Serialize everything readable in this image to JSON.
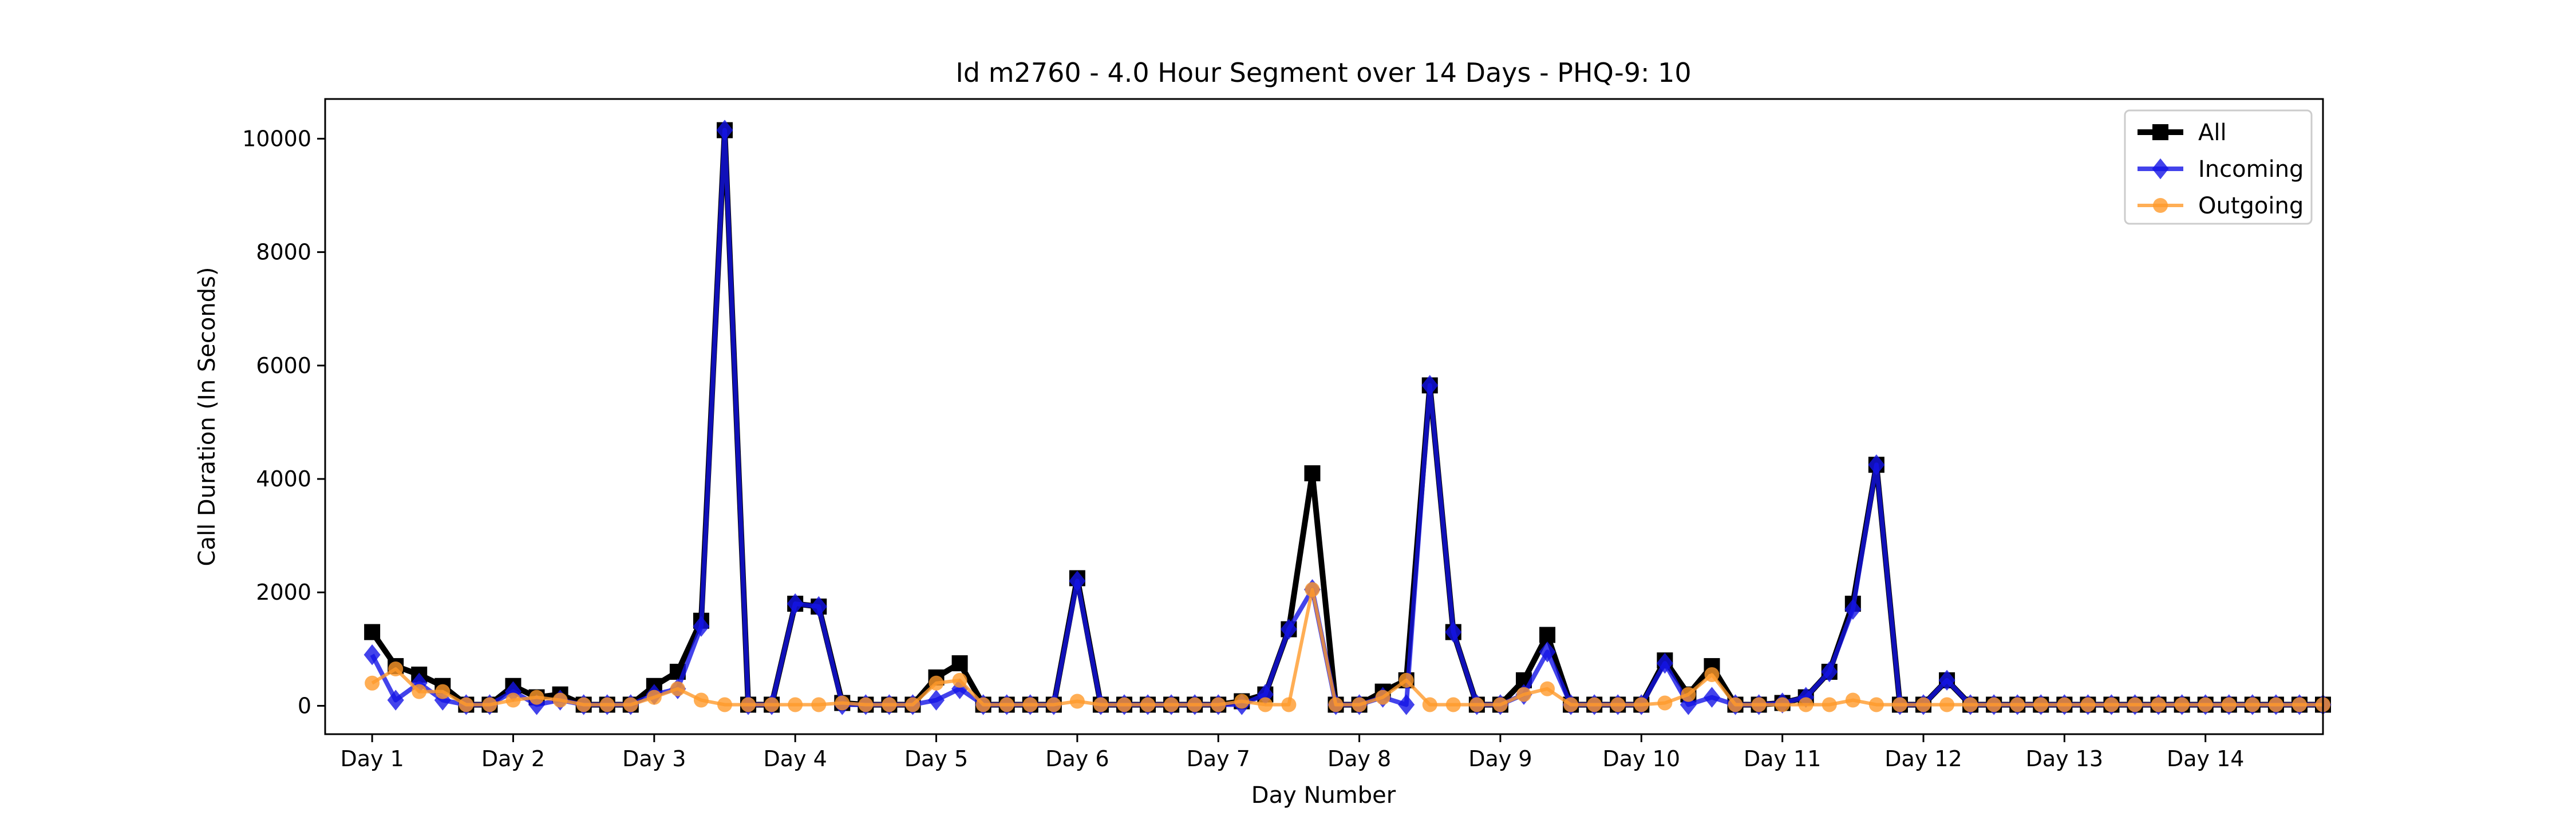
{
  "chart_data": {
    "type": "line",
    "title": "Id m2760 - 4.0 Hour Segment over 14 Days - PHQ-9: 10",
    "xlabel": "Day Number",
    "ylabel": "Call Duration (In Seconds)",
    "ylim": [
      -500,
      10700
    ],
    "yticks": [
      0,
      2000,
      4000,
      6000,
      8000,
      10000
    ],
    "xlim": [
      -2,
      83
    ],
    "x_tick_positions": [
      0,
      6,
      12,
      18,
      24,
      30,
      36,
      42,
      48,
      54,
      60,
      66,
      72,
      78
    ],
    "x_tick_labels": [
      "Day 1",
      "Day 2",
      "Day 3",
      "Day 4",
      "Day 5",
      "Day 6",
      "Day 7",
      "Day 8",
      "Day 9",
      "Day 10",
      "Day 11",
      "Day 12",
      "Day 13",
      "Day 14"
    ],
    "grid": false,
    "legend_position": "top-right",
    "x": [
      0,
      1,
      2,
      3,
      4,
      5,
      6,
      7,
      8,
      9,
      10,
      11,
      12,
      13,
      14,
      15,
      16,
      17,
      18,
      19,
      20,
      21,
      22,
      23,
      24,
      25,
      26,
      27,
      28,
      29,
      30,
      31,
      32,
      33,
      34,
      35,
      36,
      37,
      38,
      39,
      40,
      41,
      42,
      43,
      44,
      45,
      46,
      47,
      48,
      49,
      50,
      51,
      52,
      53,
      54,
      55,
      56,
      57,
      58,
      59,
      60,
      61,
      62,
      63,
      64,
      65,
      66,
      67,
      68,
      69,
      70,
      71,
      72,
      73,
      74,
      75,
      76,
      77,
      78,
      79,
      80,
      81,
      82,
      83
    ],
    "series": [
      {
        "name": "All",
        "color": "#000000",
        "marker": "square",
        "values": [
          1300,
          700,
          550,
          350,
          20,
          20,
          350,
          150,
          200,
          20,
          20,
          20,
          350,
          600,
          1500,
          10150,
          20,
          20,
          1800,
          1750,
          50,
          20,
          20,
          20,
          500,
          750,
          20,
          20,
          20,
          20,
          2250,
          20,
          20,
          20,
          20,
          20,
          20,
          80,
          200,
          1350,
          4100,
          20,
          20,
          250,
          450,
          5650,
          1300,
          20,
          20,
          450,
          1250,
          20,
          20,
          20,
          20,
          800,
          200,
          700,
          20,
          20,
          50,
          150,
          600,
          1800,
          4250,
          20,
          20,
          450,
          20,
          20,
          20,
          20,
          20,
          20,
          20,
          20,
          20,
          20,
          20,
          20,
          20,
          20,
          20,
          20
        ]
      },
      {
        "name": "Incoming",
        "color": "#1414e6",
        "marker": "diamond",
        "values": [
          900,
          100,
          400,
          100,
          20,
          20,
          250,
          20,
          100,
          20,
          20,
          20,
          200,
          300,
          1400,
          10150,
          20,
          20,
          1800,
          1750,
          20,
          20,
          20,
          20,
          100,
          300,
          20,
          20,
          20,
          20,
          2200,
          20,
          20,
          20,
          20,
          20,
          20,
          20,
          200,
          1350,
          2050,
          20,
          20,
          150,
          20,
          5650,
          1300,
          20,
          20,
          200,
          950,
          20,
          20,
          20,
          20,
          750,
          20,
          150,
          20,
          20,
          50,
          150,
          600,
          1700,
          4250,
          20,
          20,
          450,
          20,
          20,
          20,
          20,
          20,
          20,
          20,
          20,
          20,
          20,
          20,
          20,
          20,
          20,
          20,
          20
        ]
      },
      {
        "name": "Outgoing",
        "color": "#ff9a2a",
        "marker": "circle",
        "values": [
          400,
          650,
          250,
          250,
          20,
          20,
          100,
          150,
          100,
          20,
          20,
          20,
          150,
          300,
          100,
          20,
          20,
          20,
          20,
          20,
          50,
          20,
          20,
          20,
          400,
          450,
          20,
          20,
          20,
          20,
          80,
          20,
          20,
          20,
          20,
          20,
          20,
          80,
          20,
          20,
          2050,
          20,
          20,
          150,
          450,
          20,
          20,
          20,
          20,
          200,
          300,
          20,
          20,
          20,
          20,
          50,
          200,
          550,
          20,
          20,
          20,
          20,
          20,
          100,
          20,
          20,
          20,
          20,
          20,
          20,
          20,
          20,
          20,
          20,
          20,
          20,
          20,
          20,
          20,
          20,
          20,
          20,
          20,
          20
        ]
      }
    ]
  }
}
